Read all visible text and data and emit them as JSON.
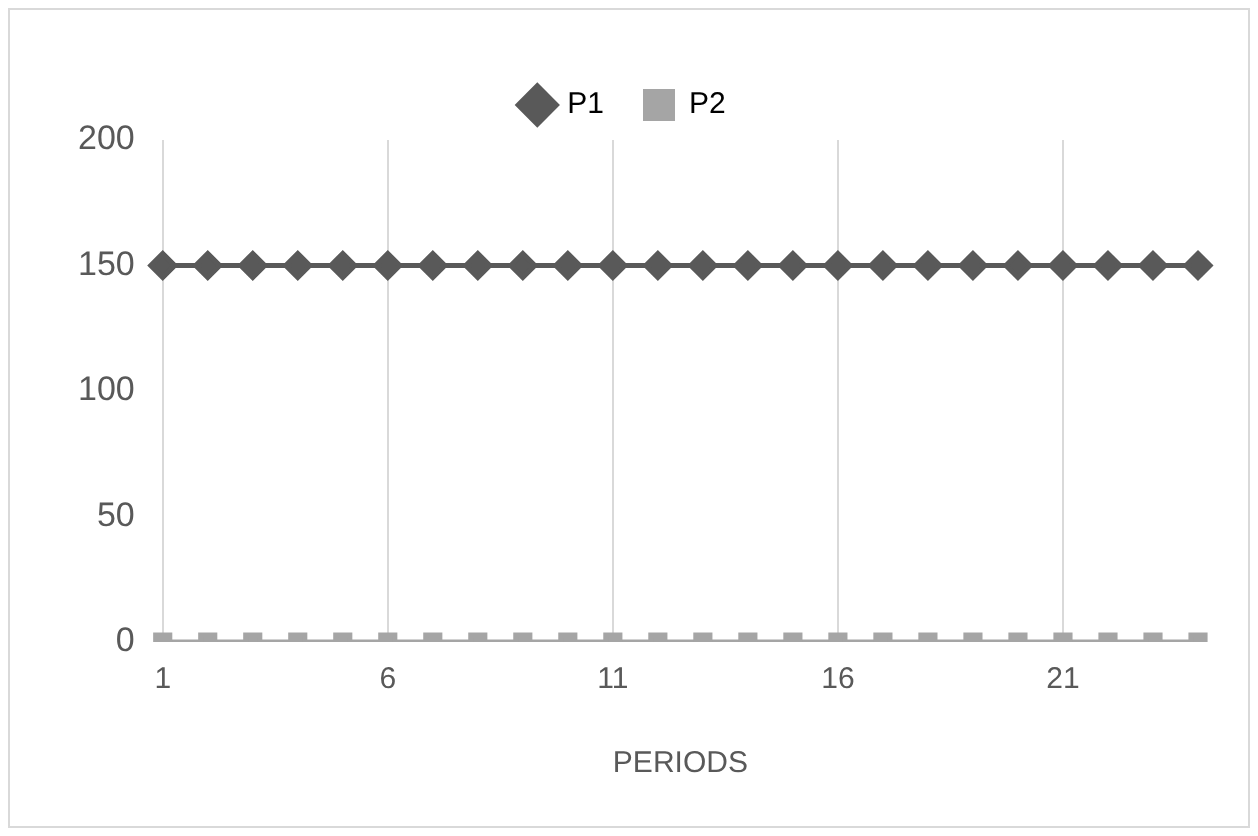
{
  "chart_data": {
    "type": "line",
    "xlabel": "PERIODS",
    "categories": [
      "1",
      null,
      null,
      null,
      null,
      "6",
      null,
      null,
      null,
      null,
      "11",
      null,
      null,
      null,
      null,
      "16",
      null,
      null,
      null,
      null,
      "21",
      null,
      null,
      null
    ],
    "series": [
      {
        "name": "P1",
        "color": "#595959",
        "marker": "diamond",
        "values": [
          150,
          150,
          150,
          150,
          150,
          150,
          150,
          150,
          150,
          150,
          150,
          150,
          150,
          150,
          150,
          150,
          150,
          150,
          150,
          150,
          150,
          150,
          150,
          150
        ]
      },
      {
        "name": "P2",
        "color": "#a5a5a5",
        "marker": "square",
        "values": [
          0,
          0,
          0,
          0,
          0,
          0,
          0,
          0,
          0,
          0,
          0,
          0,
          0,
          0,
          0,
          0,
          0,
          0,
          0,
          0,
          0,
          0,
          0,
          0
        ]
      }
    ],
    "ylim": [
      0,
      200
    ],
    "yticks": [
      0,
      50,
      100,
      150,
      200
    ],
    "grid": "x",
    "legend": "top"
  }
}
